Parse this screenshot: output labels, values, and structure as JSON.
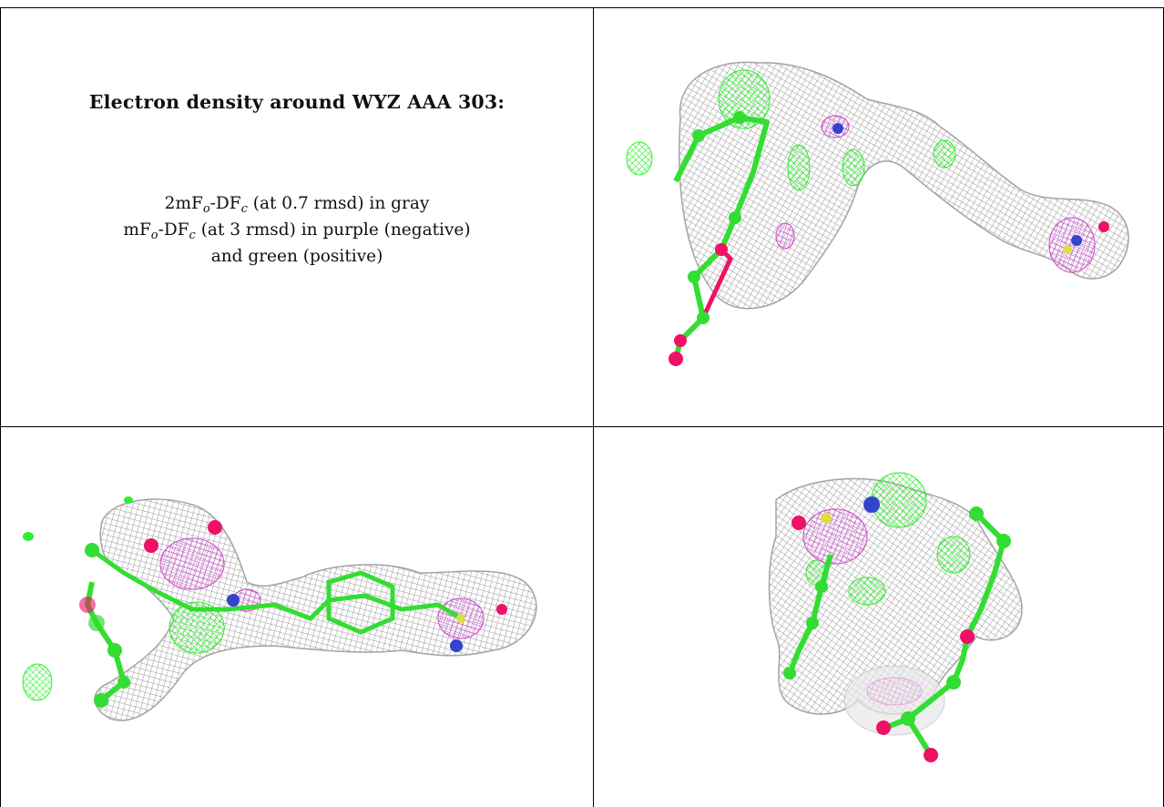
{
  "caption": {
    "title": "Electron density around WYZ AAA 303:",
    "line1": {
      "pre": "2mF",
      "sub1": "o",
      "mid": "-DF",
      "sub2": "c",
      "post": " (at 0.7 rmsd) in gray"
    },
    "line2": {
      "pre": "mF",
      "sub1": "o",
      "mid": "-DF",
      "sub2": "c",
      "post": " (at 3 rmsd) in purple (negative)"
    },
    "line3": "and green (positive)"
  },
  "panels": [
    {
      "id": "top-right",
      "view": "ligand density view 1"
    },
    {
      "id": "bottom-left",
      "view": "ligand density view 2"
    },
    {
      "id": "bottom-right",
      "view": "ligand density view 3"
    }
  ],
  "colors": {
    "mesh_gray": "#8c8c8c",
    "density_positive": "#22ee22",
    "density_negative": "#cc33cc",
    "carbon": "#33dd33",
    "oxygen": "#ee1166",
    "nitrogen": "#3344cc",
    "sulfur": "#dddd44"
  }
}
